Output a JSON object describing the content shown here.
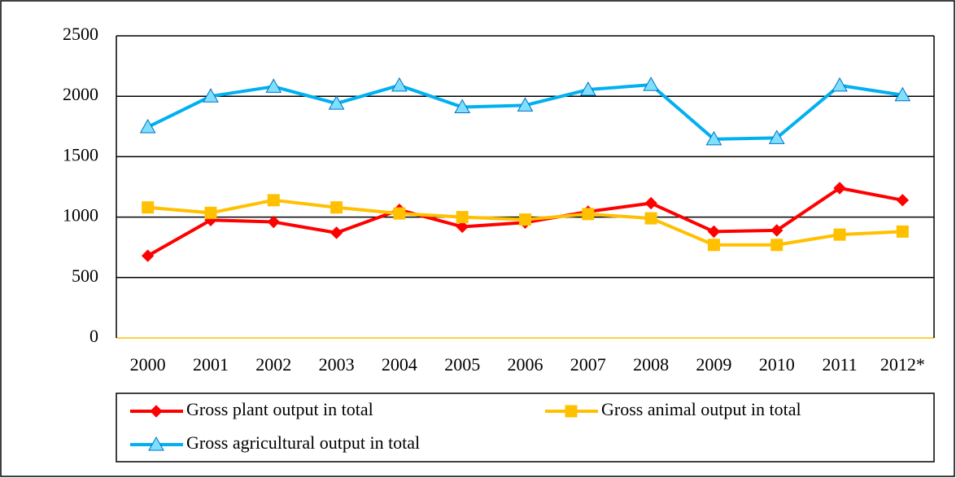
{
  "chart_data": {
    "type": "line",
    "categories": [
      "2000",
      "2001",
      "2002",
      "2003",
      "2004",
      "2005",
      "2006",
      "2007",
      "2008",
      "2009",
      "2010",
      "2011",
      "2012*"
    ],
    "ylim": [
      0,
      2500
    ],
    "yticks": [
      0,
      500,
      1000,
      1500,
      2000,
      2500
    ],
    "grid": true,
    "series": [
      {
        "name": "Gross plant output in total",
        "color": "#ff0000",
        "marker": "diamond",
        "values": [
          680,
          975,
          960,
          870,
          1060,
          920,
          955,
          1045,
          1115,
          880,
          890,
          1240,
          1140
        ]
      },
      {
        "name": "Gross animal output in total",
        "color": "#ffc000",
        "marker": "square",
        "values": [
          1080,
          1035,
          1140,
          1080,
          1030,
          1000,
          980,
          1025,
          990,
          770,
          770,
          855,
          880
        ]
      },
      {
        "name": "Gross agricultural output in total",
        "color": "#00b0f0",
        "marker": "triangle",
        "values": [
          1745,
          2000,
          2080,
          1940,
          2090,
          1910,
          1925,
          2055,
          2095,
          1645,
          1655,
          2090,
          2010
        ]
      }
    ]
  }
}
